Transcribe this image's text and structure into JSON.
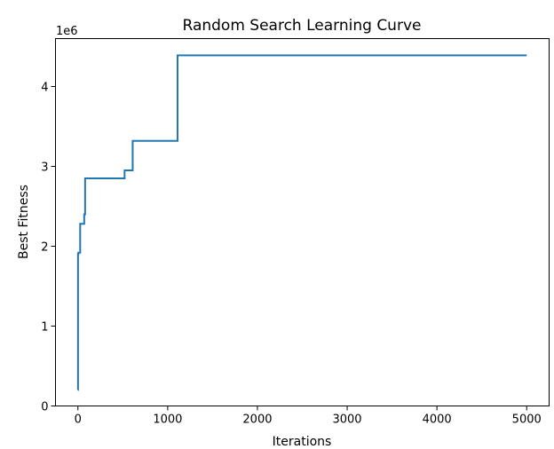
{
  "chart_data": {
    "type": "line",
    "title": "Random Search Learning Curve",
    "xlabel": "Iterations",
    "ylabel": "Best Fitness",
    "y_offset_label": "1e6",
    "xlim": [
      -250,
      5250
    ],
    "ylim": [
      0,
      4600000
    ],
    "x_ticks": [
      0,
      1000,
      2000,
      3000,
      4000,
      5000
    ],
    "x_tick_labels": [
      "0",
      "1000",
      "2000",
      "3000",
      "4000",
      "5000"
    ],
    "y_ticks": [
      0,
      1000000,
      2000000,
      3000000,
      4000000
    ],
    "y_tick_labels": [
      "0",
      "1",
      "2",
      "3",
      "4"
    ],
    "grid": false,
    "line_style": "step",
    "series": [
      {
        "color": "#1f77b4",
        "x": [
          0,
          1,
          5,
          25,
          70,
          80,
          520,
          610,
          1110,
          5000
        ],
        "y": [
          200000,
          1900000,
          1920000,
          2280000,
          2400000,
          2850000,
          2950000,
          3320000,
          4390000,
          4390000
        ]
      }
    ]
  }
}
